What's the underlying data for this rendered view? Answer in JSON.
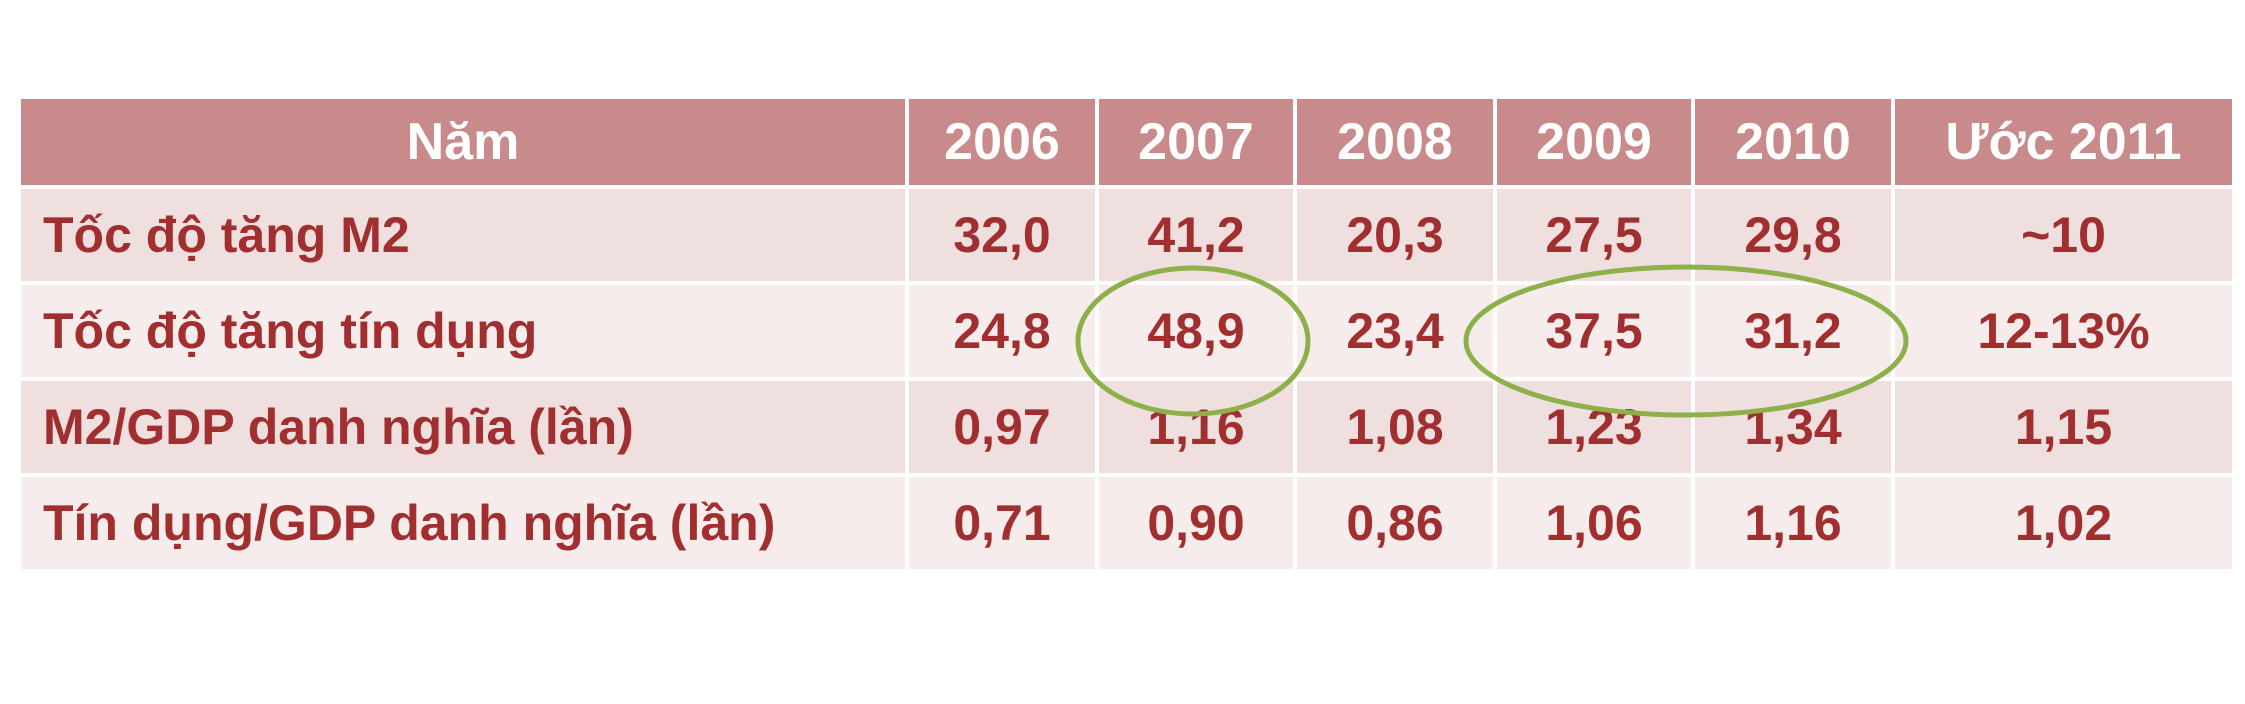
{
  "chart_data": {
    "type": "table",
    "columns": [
      "Năm",
      "2006",
      "2007",
      "2008",
      "2009",
      "2010",
      "Ước 2011"
    ],
    "rows": [
      {
        "label": "Tốc độ tăng M2",
        "values": [
          "32,0",
          "41,2",
          "20,3",
          "27,5",
          "29,8",
          "~10"
        ]
      },
      {
        "label": "Tốc độ tăng tín dụng",
        "values": [
          "24,8",
          "48,9",
          "23,4",
          "37,5",
          "31,2",
          "12-13%"
        ]
      },
      {
        "label": "M2/GDP danh nghĩa (lần)",
        "values": [
          "0,97",
          "1,16",
          "1,08",
          "1,23",
          "1,34",
          "1,15"
        ]
      },
      {
        "label": "Tín dụng/GDP danh nghĩa (lần)",
        "values": [
          "0,71",
          "0,90",
          "0,86",
          "1,06",
          "1,16",
          "1,02"
        ]
      }
    ],
    "highlights": [
      {
        "row": 1,
        "columns": [
          "2007"
        ]
      },
      {
        "row": 1,
        "columns": [
          "2009",
          "2010"
        ]
      }
    ]
  },
  "colors": {
    "header_bg": "#c88a8a",
    "header_text": "#ffffff",
    "row_odd_bg": "#efdfdf",
    "row_even_bg": "#f7ecec",
    "cell_text": "#a12f2f",
    "highlight_ring": "#8db04a"
  }
}
